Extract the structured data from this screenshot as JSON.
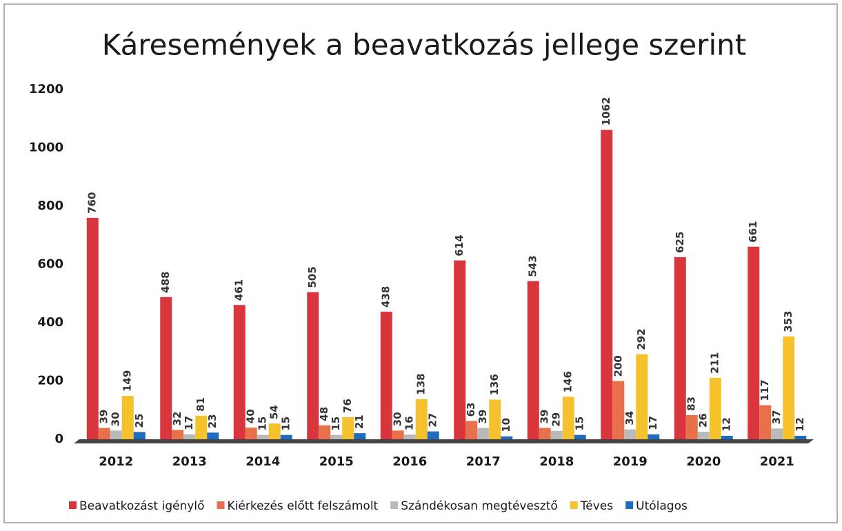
{
  "chart_data": {
    "type": "bar",
    "title": "Káresemények a beavatkozás jellege szerint",
    "categories": [
      "2012",
      "2013",
      "2014",
      "2015",
      "2016",
      "2017",
      "2018",
      "2019",
      "2020",
      "2021"
    ],
    "series": [
      {
        "name": "Beavatkozást igénylő",
        "color": "#d9353d",
        "values": [
          760,
          488,
          461,
          505,
          438,
          614,
          543,
          1062,
          625,
          661
        ]
      },
      {
        "name": "Kiérkezés előtt felszámolt",
        "color": "#e8714b",
        "values": [
          39,
          32,
          40,
          48,
          30,
          63,
          39,
          200,
          83,
          117
        ]
      },
      {
        "name": "Szándékosan megtévesztő",
        "color": "#b9b9b9",
        "values": [
          30,
          17,
          15,
          15,
          16,
          39,
          29,
          34,
          26,
          37
        ]
      },
      {
        "name": "Téves",
        "color": "#f5c12d",
        "values": [
          149,
          81,
          54,
          76,
          138,
          136,
          146,
          292,
          211,
          353
        ]
      },
      {
        "name": "Utólagos",
        "color": "#1f6cc0",
        "values": [
          25,
          23,
          15,
          21,
          27,
          10,
          15,
          17,
          12,
          12
        ]
      }
    ],
    "ylim": [
      0,
      1200
    ],
    "yticks": [
      0,
      200,
      400,
      600,
      800,
      1000,
      1200
    ],
    "grid": false,
    "legend": "bottom"
  }
}
